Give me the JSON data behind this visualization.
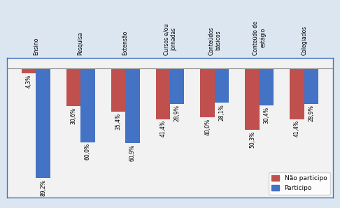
{
  "categories": [
    "Ensino",
    "Pesquisa",
    "Extensão",
    "Cursos e/ou\njornadas",
    "Conteúdos\nbásicos",
    "Conteúdo de\nestágio",
    "Colegiados"
  ],
  "nao_participo": [
    4.3,
    30.6,
    35.4,
    41.4,
    40.0,
    50.3,
    41.4
  ],
  "participo": [
    89.2,
    60.0,
    60.9,
    28.9,
    28.1,
    30.4,
    28.9
  ],
  "color_nao": "#C0504D",
  "color_participo": "#4472C4",
  "legend_nao": "Não participo",
  "legend_participo": "Participo",
  "fig_bg": "#dce6f1",
  "ax_bg": "#f2f2f2",
  "bar_width": 0.32,
  "ylim_min": -105,
  "ylim_max": 8,
  "label_fontsize": 5.5,
  "tick_fontsize": 5.5,
  "legend_fontsize": 6.5
}
